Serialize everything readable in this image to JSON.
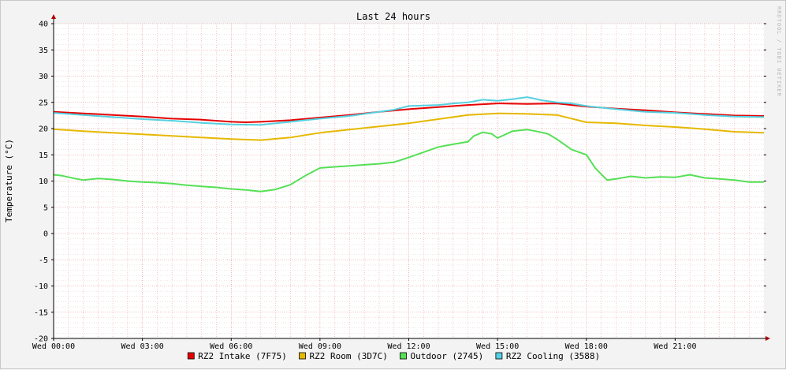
{
  "chart_data": {
    "type": "line",
    "title": "Last 24 hours",
    "ylabel": "Temperature (°C)",
    "watermark": "RRDTOOL / TOBI OETIKER",
    "ylim": [
      -20,
      40
    ],
    "yticks": [
      -20,
      -15,
      -10,
      -5,
      0,
      5,
      10,
      15,
      20,
      25,
      30,
      35,
      40
    ],
    "xlim_hours": [
      0,
      24
    ],
    "xticks": [
      {
        "hour": 0,
        "label": "Wed 00:00"
      },
      {
        "hour": 3,
        "label": "Wed 03:00"
      },
      {
        "hour": 6,
        "label": "Wed 06:00"
      },
      {
        "hour": 9,
        "label": "Wed 09:00"
      },
      {
        "hour": 12,
        "label": "Wed 12:00"
      },
      {
        "hour": 15,
        "label": "Wed 15:00"
      },
      {
        "hour": 18,
        "label": "Wed 18:00"
      },
      {
        "hour": 21,
        "label": "Wed 21:00"
      }
    ],
    "grid": true,
    "legend_position": "bottom",
    "series": [
      {
        "name": "RZ2 Intake (7F75)",
        "color": "#e60000",
        "x": [
          0,
          1,
          2,
          3,
          4,
          5,
          6,
          6.5,
          7,
          8,
          9,
          10,
          11,
          12,
          13,
          14,
          15,
          16,
          17,
          18,
          19,
          20,
          21,
          22,
          23,
          24
        ],
        "y": [
          23.2,
          22.9,
          22.6,
          22.3,
          21.9,
          21.7,
          21.3,
          21.2,
          21.3,
          21.6,
          22.1,
          22.6,
          23.2,
          23.7,
          24.1,
          24.5,
          24.8,
          24.7,
          24.8,
          24.2,
          23.8,
          23.5,
          23.1,
          22.8,
          22.5,
          22.4
        ]
      },
      {
        "name": "RZ2 Room (3D7C)",
        "color": "#e6b800",
        "x": [
          0,
          1,
          2,
          3,
          4,
          5,
          6,
          7,
          8,
          9,
          10,
          11,
          12,
          13,
          14,
          15,
          16,
          17,
          18,
          19,
          20,
          21,
          22,
          23,
          24
        ],
        "y": [
          19.9,
          19.5,
          19.2,
          18.9,
          18.6,
          18.3,
          18.0,
          17.8,
          18.3,
          19.2,
          19.8,
          20.4,
          21.0,
          21.8,
          22.6,
          22.9,
          22.8,
          22.6,
          21.2,
          21.0,
          20.6,
          20.3,
          19.9,
          19.4,
          19.2
        ]
      },
      {
        "name": "Outdoor (2745)",
        "color": "#55e055",
        "x": [
          0,
          0.3,
          0.7,
          1,
          1.5,
          2,
          2.5,
          3,
          3.5,
          4,
          4.5,
          5,
          5.5,
          6,
          6.5,
          7,
          7.5,
          8,
          8.5,
          9,
          9.5,
          10,
          10.5,
          11,
          11.5,
          12,
          12.5,
          13,
          13.5,
          14,
          14.2,
          14.5,
          14.8,
          15,
          15.5,
          16,
          16.3,
          16.7,
          17,
          17.5,
          18,
          18.3,
          18.7,
          19,
          19.5,
          20,
          20.5,
          21,
          21.5,
          22,
          22.5,
          23,
          23.5,
          24
        ],
        "y": [
          11.2,
          11.0,
          10.5,
          10.2,
          10.5,
          10.3,
          10.0,
          9.8,
          9.7,
          9.5,
          9.2,
          9.0,
          8.8,
          8.5,
          8.3,
          8.0,
          8.4,
          9.3,
          11.0,
          12.5,
          12.7,
          12.9,
          13.1,
          13.3,
          13.6,
          14.5,
          15.5,
          16.5,
          17.0,
          17.5,
          18.6,
          19.3,
          19.0,
          18.2,
          19.5,
          19.8,
          19.5,
          19.0,
          18.0,
          16.0,
          15.0,
          12.5,
          10.2,
          10.4,
          10.9,
          10.6,
          10.8,
          10.7,
          11.2,
          10.6,
          10.4,
          10.2,
          9.8,
          9.8
        ]
      },
      {
        "name": "RZ2 Cooling (3588)",
        "color": "#55d0e0",
        "x": [
          0,
          1,
          2,
          3,
          4,
          5,
          6,
          7,
          8,
          9,
          10,
          11,
          11.5,
          12,
          12.5,
          13,
          13.5,
          14,
          14.5,
          15,
          15.5,
          16,
          16.5,
          17,
          17.5,
          18,
          19,
          20,
          21,
          22,
          23,
          24
        ],
        "y": [
          23.0,
          22.6,
          22.2,
          21.8,
          21.5,
          21.1,
          20.8,
          20.7,
          21.3,
          21.9,
          22.4,
          23.2,
          23.6,
          24.3,
          24.4,
          24.5,
          24.8,
          25.0,
          25.5,
          25.3,
          25.6,
          26.0,
          25.4,
          25.0,
          24.8,
          24.3,
          23.7,
          23.2,
          23.0,
          22.6,
          22.3,
          22.2
        ]
      }
    ]
  }
}
